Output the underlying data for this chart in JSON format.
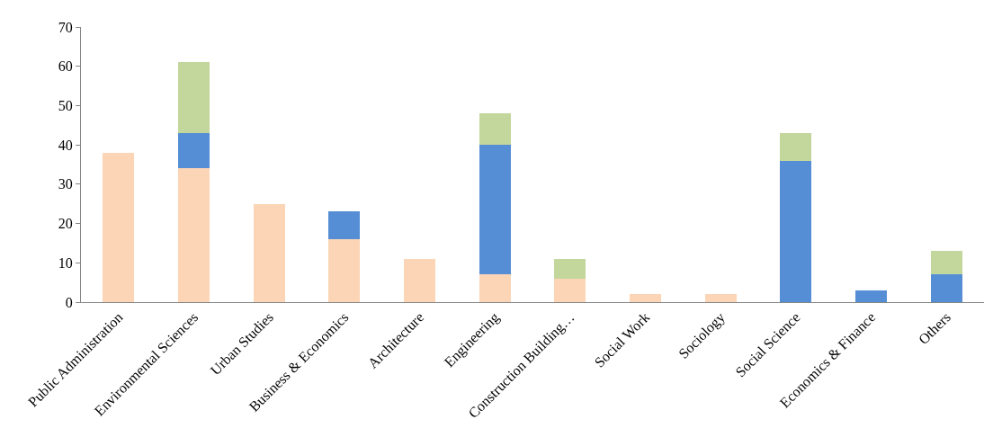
{
  "chart_data": {
    "type": "bar",
    "stacked": true,
    "categories": [
      "Public Administration",
      "Environmental Sciences",
      "Urban Studies",
      "Business & Economics",
      "Architecture",
      "Engineering",
      "Construction Building…",
      "Social Work",
      "Sociology",
      "Social Science",
      "Economics & Finance",
      "Others"
    ],
    "series": [
      {
        "color": "#fbd5b5",
        "values": [
          38,
          34,
          25,
          16,
          11,
          7,
          6,
          2,
          2,
          0,
          0,
          0
        ]
      },
      {
        "color": "#558ed5",
        "values": [
          0,
          9,
          0,
          7,
          0,
          33,
          0,
          0,
          0,
          36,
          3,
          7
        ]
      },
      {
        "color": "#c3d69b",
        "values": [
          0,
          18,
          0,
          0,
          0,
          8,
          5,
          0,
          0,
          7,
          0,
          6
        ]
      }
    ],
    "ylim": [
      0,
      70
    ],
    "yticks": [
      0,
      10,
      20,
      30,
      40,
      50,
      60,
      70
    ]
  }
}
